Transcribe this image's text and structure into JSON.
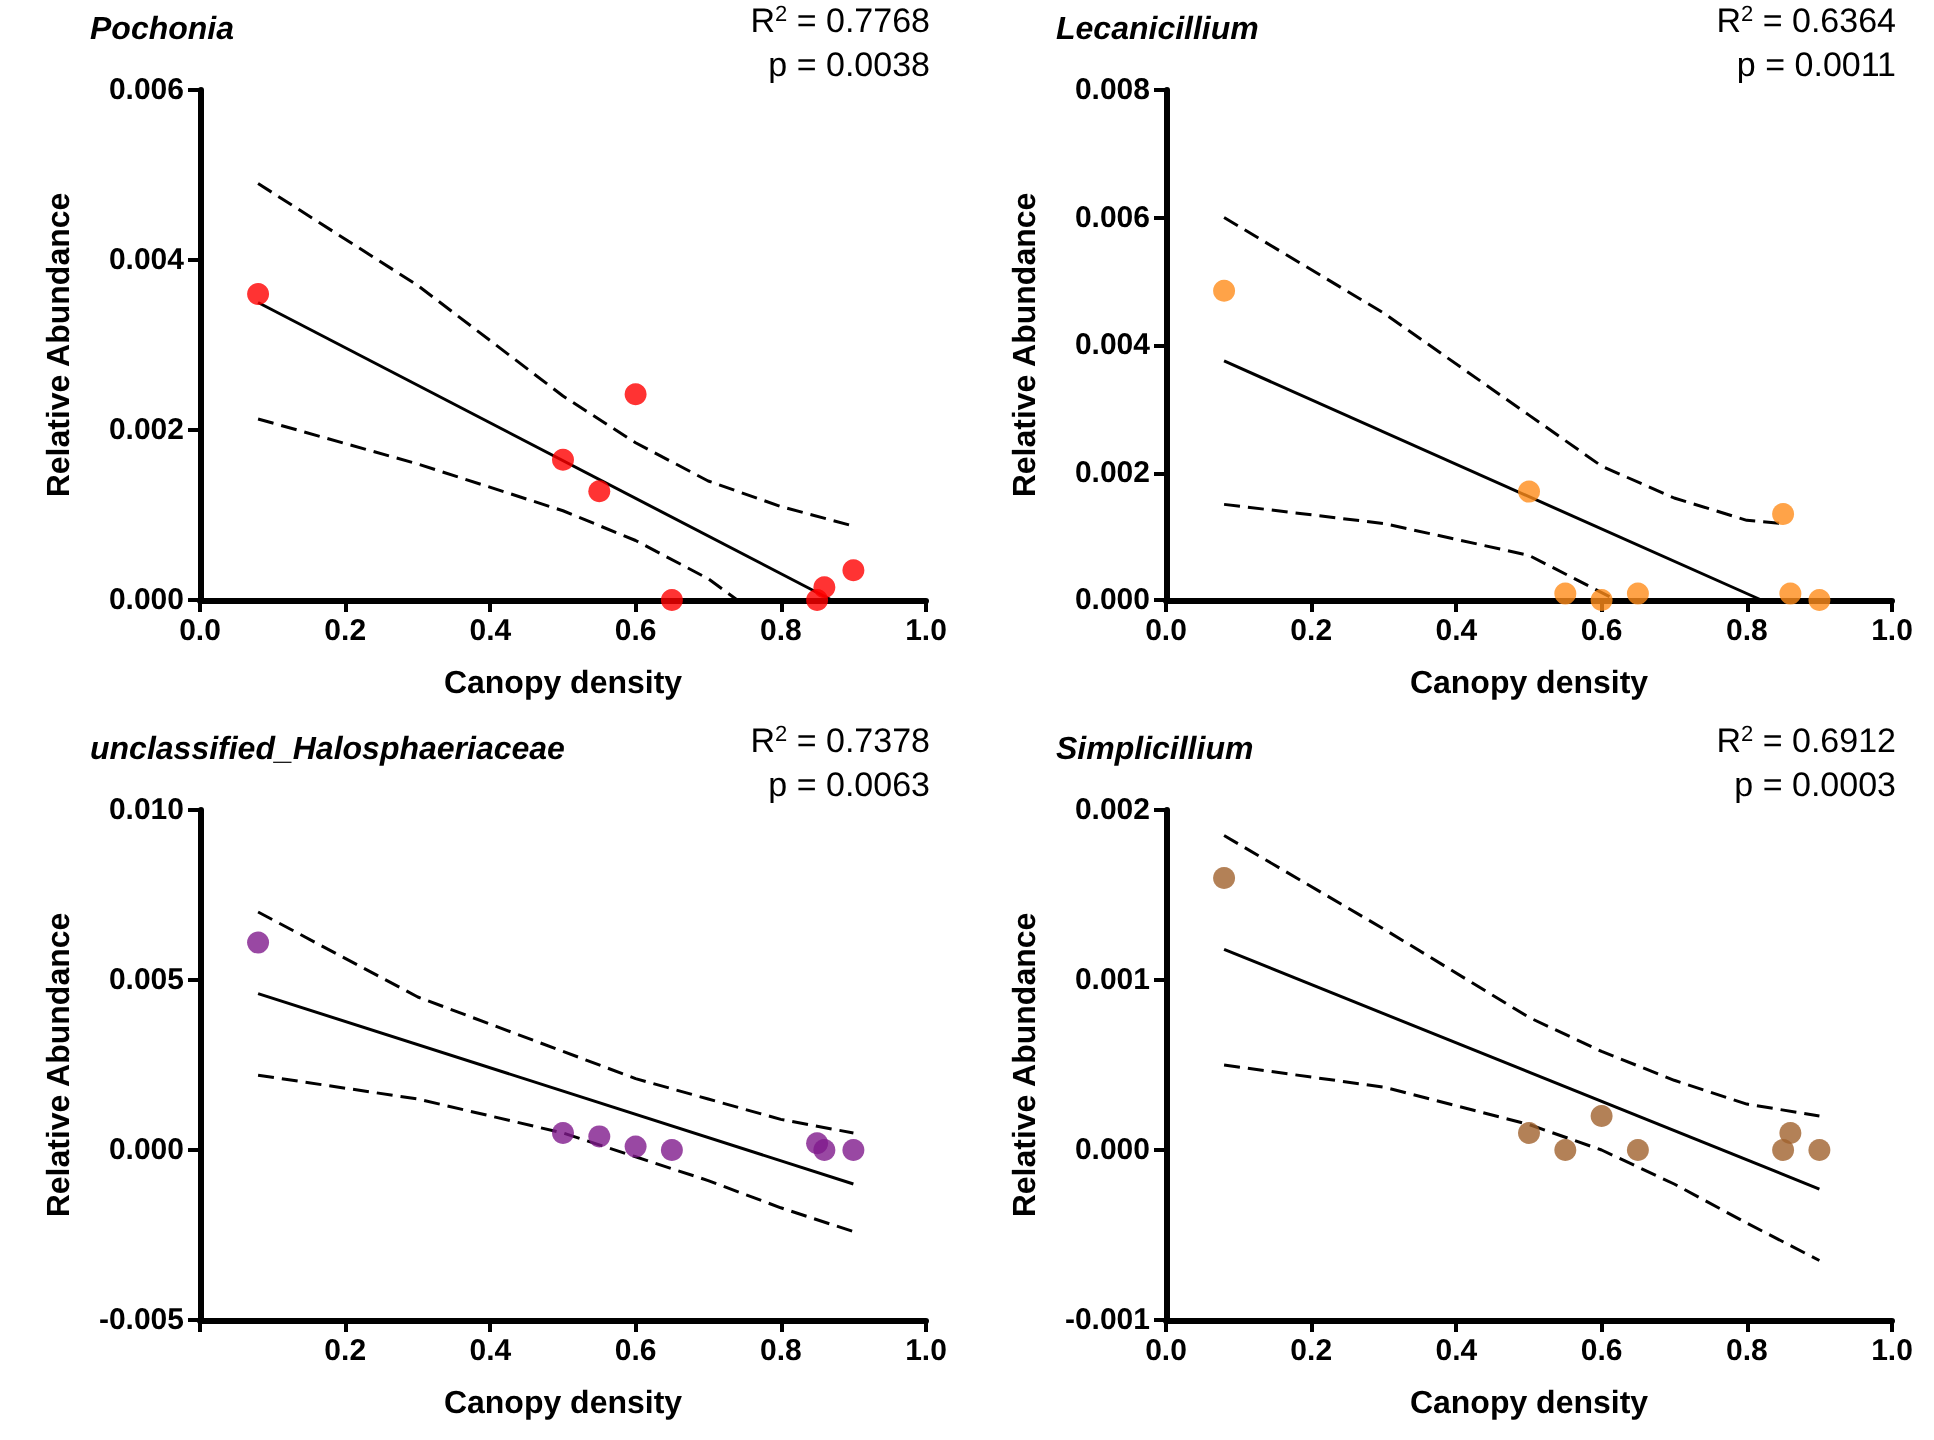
{
  "chart_data": [
    {
      "type": "scatter",
      "title": "Pochonia",
      "xlabel": "Canopy density",
      "ylabel": "Relative Abundance",
      "annotations": [
        "R$^{2}$ = 0.7768",
        "p = 0.0038"
      ],
      "marker": "circle",
      "grid": false,
      "xlim": [
        0,
        1
      ],
      "xticks": [
        {
          "value": 0,
          "label": "0.0"
        },
        {
          "value": 0.2,
          "label": "0.2"
        },
        {
          "value": 0.4,
          "label": "0.4"
        },
        {
          "value": 0.6,
          "label": "0.6"
        },
        {
          "value": 0.8,
          "label": "0.8"
        },
        {
          "value": 1,
          "label": "1.0"
        }
      ],
      "ylim": [
        0,
        0.006
      ],
      "yticks": [
        {
          "value": 0,
          "label": "0.000"
        },
        {
          "value": 0.002,
          "label": "0.002"
        },
        {
          "value": 0.004,
          "label": "0.004"
        },
        {
          "value": 0.006,
          "label": "0.006"
        }
      ],
      "series": [
        {
          "color": "#ff0000",
          "x": [
            0.08,
            0.5,
            0.55,
            0.6,
            0.65,
            0.85,
            0.86,
            0.9
          ],
          "values": [
            0.0036,
            0.00165,
            0.00128,
            0.00242,
            0,
            0,
            0.00015,
            0.00035
          ]
        },
        {
          "type": "line",
          "marker": "none",
          "color": "#000000",
          "line_style": "solid",
          "x": [
            0.08,
            0.87
          ],
          "values": [
            0.0035,
            0
          ]
        },
        {
          "type": "line",
          "marker": "none",
          "color": "#000000",
          "line_style": "dashed",
          "x": [
            0.08,
            0.3,
            0.5,
            0.6,
            0.7,
            0.8,
            0.9
          ],
          "values": [
            0.0049,
            0.0037,
            0.0024,
            0.00185,
            0.0014,
            0.0011,
            0.00087
          ]
        },
        {
          "type": "line",
          "marker": "none",
          "color": "#000000",
          "line_style": "dashed",
          "x": [
            0.08,
            0.3,
            0.5,
            0.6,
            0.7,
            0.74
          ],
          "values": [
            0.00213,
            0.0016,
            0.00105,
            0.0007,
            0.00025,
            0
          ]
        }
      ]
    },
    {
      "type": "scatter",
      "title": "Lecanicillium",
      "xlabel": "Canopy density",
      "ylabel": "Relative Abundance",
      "annotations": [
        "R$^{2}$ = 0.6364",
        "p = 0.0011"
      ],
      "marker": "circle",
      "grid": false,
      "xlim": [
        0,
        1
      ],
      "xticks": [
        {
          "value": 0,
          "label": "0.0"
        },
        {
          "value": 0.2,
          "label": "0.2"
        },
        {
          "value": 0.4,
          "label": "0.4"
        },
        {
          "value": 0.6,
          "label": "0.6"
        },
        {
          "value": 0.8,
          "label": "0.8"
        },
        {
          "value": 1,
          "label": "1.0"
        }
      ],
      "ylim": [
        0,
        0.008
      ],
      "yticks": [
        {
          "value": 0,
          "label": "0.000"
        },
        {
          "value": 0.002,
          "label": "0.002"
        },
        {
          "value": 0.004,
          "label": "0.004"
        },
        {
          "value": 0.006,
          "label": "0.006"
        },
        {
          "value": 0.008,
          "label": "0.008"
        }
      ],
      "series": [
        {
          "color": "#ff8c1a",
          "x": [
            0.08,
            0.5,
            0.55,
            0.6,
            0.65,
            0.85,
            0.86,
            0.9
          ],
          "values": [
            0.00485,
            0.0017,
            0.0001,
            0,
            0.0001,
            0.00135,
            0.0001,
            0
          ]
        },
        {
          "type": "line",
          "marker": "none",
          "color": "#000000",
          "line_style": "solid",
          "x": [
            0.08,
            0.82
          ],
          "values": [
            0.00375,
            0
          ]
        },
        {
          "type": "line",
          "marker": "none",
          "color": "#000000",
          "line_style": "dashed",
          "x": [
            0.08,
            0.3,
            0.5,
            0.6,
            0.7,
            0.8,
            0.85
          ],
          "values": [
            0.006,
            0.0045,
            0.0029,
            0.0021,
            0.0016,
            0.00125,
            0.0012
          ]
        },
        {
          "type": "line",
          "marker": "none",
          "color": "#000000",
          "line_style": "dashed",
          "x": [
            0.08,
            0.3,
            0.5,
            0.62
          ],
          "values": [
            0.0015,
            0.0012,
            0.0007,
            0
          ]
        }
      ]
    },
    {
      "type": "scatter",
      "title": "unclassified_Halosphaeriaceae",
      "xlabel": "Canopy density",
      "ylabel": "Relative Abundance",
      "annotations": [
        "R$^{2}$ = 0.7378",
        "p = 0.0063"
      ],
      "marker": "circle",
      "grid": false,
      "xlim": [
        0,
        1
      ],
      "xticks": [
        {
          "value": 0,
          "label": null
        },
        {
          "value": 0.2,
          "label": "0.2"
        },
        {
          "value": 0.4,
          "label": "0.4"
        },
        {
          "value": 0.6,
          "label": "0.6"
        },
        {
          "value": 0.8,
          "label": "0.8"
        },
        {
          "value": 1,
          "label": "1.0"
        }
      ],
      "ylim": [
        -0.005,
        0.01
      ],
      "yticks": [
        {
          "value": -0.005,
          "label": "-0.005"
        },
        {
          "value": 0,
          "label": "0.000"
        },
        {
          "value": 0.005,
          "label": "0.005"
        },
        {
          "value": 0.01,
          "label": "0.010"
        }
      ],
      "series": [
        {
          "color": "#7f1a8c",
          "x": [
            0.08,
            0.5,
            0.55,
            0.6,
            0.65,
            0.85,
            0.86,
            0.9
          ],
          "values": [
            0.0061,
            0.0005,
            0.0004,
            0.0001,
            0,
            0.0002,
            0,
            0
          ]
        },
        {
          "type": "line",
          "marker": "none",
          "color": "#000000",
          "line_style": "solid",
          "x": [
            0.08,
            0.9
          ],
          "values": [
            0.0046,
            -0.001
          ]
        },
        {
          "type": "line",
          "marker": "none",
          "color": "#000000",
          "line_style": "dashed",
          "x": [
            0.08,
            0.3,
            0.5,
            0.6,
            0.7,
            0.8,
            0.9
          ],
          "values": [
            0.007,
            0.0045,
            0.0029,
            0.0021,
            0.0015,
            0.0009,
            0.0005
          ]
        },
        {
          "type": "line",
          "marker": "none",
          "color": "#000000",
          "line_style": "dashed",
          "x": [
            0.08,
            0.3,
            0.5,
            0.6,
            0.7,
            0.8,
            0.9
          ],
          "values": [
            0.0022,
            0.0015,
            0.0005,
            -0.0002,
            -0.0009,
            -0.0017,
            -0.0024
          ]
        }
      ]
    },
    {
      "type": "scatter",
      "title": "Simplicillium",
      "xlabel": "Canopy density",
      "ylabel": "Relative Abundance",
      "annotations": [
        "R$^{2}$ = 0.6912",
        "p = 0.0003"
      ],
      "marker": "circle",
      "grid": false,
      "xlim": [
        0,
        1
      ],
      "xticks": [
        {
          "value": 0,
          "label": "0.0"
        },
        {
          "value": 0.2,
          "label": "0.2"
        },
        {
          "value": 0.4,
          "label": "0.4"
        },
        {
          "value": 0.6,
          "label": "0.6"
        },
        {
          "value": 0.8,
          "label": "0.8"
        },
        {
          "value": 1,
          "label": "1.0"
        }
      ],
      "ylim": [
        -0.001,
        0.002
      ],
      "yticks": [
        {
          "value": -0.001,
          "label": "-0.001"
        },
        {
          "value": 0,
          "label": "0.000"
        },
        {
          "value": 0.001,
          "label": "0.001"
        },
        {
          "value": 0.002,
          "label": "0.002"
        }
      ],
      "series": [
        {
          "color": "#a0622d",
          "x": [
            0.08,
            0.5,
            0.55,
            0.6,
            0.65,
            0.85,
            0.86,
            0.9
          ],
          "values": [
            0.0016,
            0.0001,
            0,
            0.0002,
            0,
            0,
            0.0001,
            0
          ]
        },
        {
          "type": "line",
          "marker": "none",
          "color": "#000000",
          "line_style": "solid",
          "x": [
            0.08,
            0.9
          ],
          "values": [
            0.00118,
            -0.00023
          ]
        },
        {
          "type": "line",
          "marker": "none",
          "color": "#000000",
          "line_style": "dashed",
          "x": [
            0.08,
            0.3,
            0.5,
            0.6,
            0.7,
            0.8,
            0.9
          ],
          "values": [
            0.00185,
            0.0013,
            0.00078,
            0.00058,
            0.00041,
            0.00027,
            0.0002
          ]
        },
        {
          "type": "line",
          "marker": "none",
          "color": "#000000",
          "line_style": "dashed",
          "x": [
            0.08,
            0.3,
            0.5,
            0.6,
            0.7,
            0.8,
            0.9
          ],
          "values": [
            0.0005,
            0.00037,
            0.00015,
            0,
            -0.0002,
            -0.00043,
            -0.00065
          ]
        }
      ]
    }
  ]
}
